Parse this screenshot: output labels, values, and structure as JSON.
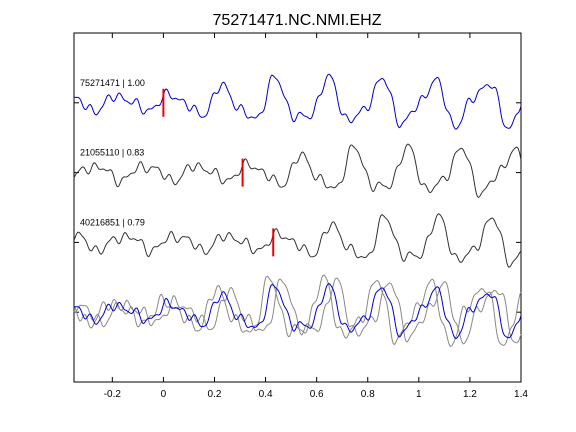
{
  "chart_data": {
    "type": "line",
    "title": "75271471.NC.NMI.EHZ",
    "xlabel": "",
    "ylabel": "",
    "xlim": [
      -0.35,
      1.4
    ],
    "xticks": [
      -0.2,
      0,
      0.2,
      0.4,
      0.6,
      0.8,
      1,
      1.2,
      1.4
    ],
    "xtick_labels": [
      "-0.2",
      "0",
      "0.2",
      "0.4",
      "0.6",
      "0.8",
      "1",
      "1.2",
      "1.4"
    ],
    "grid": false,
    "legend": "none",
    "colors": {
      "reference": "#0000cc",
      "other": "#333333",
      "overlay_other": "#888888",
      "pick": "#ee0000",
      "axis": "#000000"
    },
    "series": [
      {
        "label": "75271471 | 1.00",
        "color": "#0000cc",
        "pick_time": 0.0,
        "shift": 0.0,
        "baseline": 1
      },
      {
        "label": "21055110 | 0.83",
        "color": "#333333",
        "pick_time": 0.31,
        "shift": 0.31,
        "baseline": 2
      },
      {
        "label": "40216851 | 0.79",
        "color": "#333333",
        "pick_time": 0.43,
        "shift": 0.43,
        "baseline": 3
      }
    ]
  }
}
